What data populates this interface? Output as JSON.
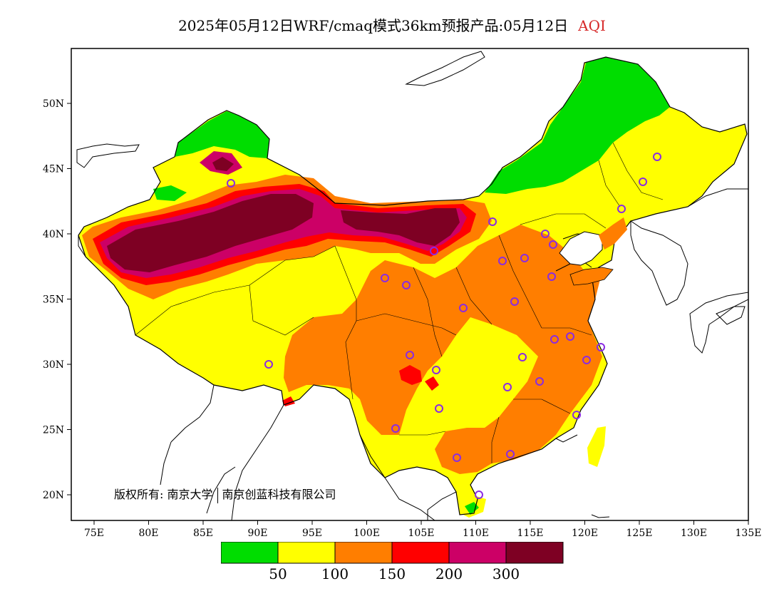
{
  "title": {
    "main": "2025年05月12日WRF/cmaq模式36km预报产品:05月12日",
    "variable": "AQI"
  },
  "credit": {
    "prefix": "版权所有:",
    "org1": "南京大学",
    "org2": "南京创蓝科技有限公司"
  },
  "axes": {
    "lon_ticks": [
      "75E",
      "80E",
      "85E",
      "90E",
      "95E",
      "100E",
      "105E",
      "110E",
      "115E",
      "120E",
      "125E",
      "130E",
      "135E"
    ],
    "lat_ticks": [
      "20N",
      "25N",
      "30N",
      "35N",
      "40N",
      "45N",
      "50N"
    ]
  },
  "legend": {
    "colors": [
      "#00dd00",
      "#ffff00",
      "#ff7e00",
      "#ff0000",
      "#cc0066",
      "#7e0023"
    ],
    "labels": [
      "50",
      "100",
      "150",
      "200",
      "300"
    ]
  },
  "colors": {
    "good": "#00dd00",
    "moderate": "#ffff00",
    "sensitive": "#ff7e00",
    "unhealthy": "#ff0000",
    "very_unhealthy": "#cc0066",
    "hazardous": "#7e0023",
    "station_marker": "#8a2be2"
  }
}
